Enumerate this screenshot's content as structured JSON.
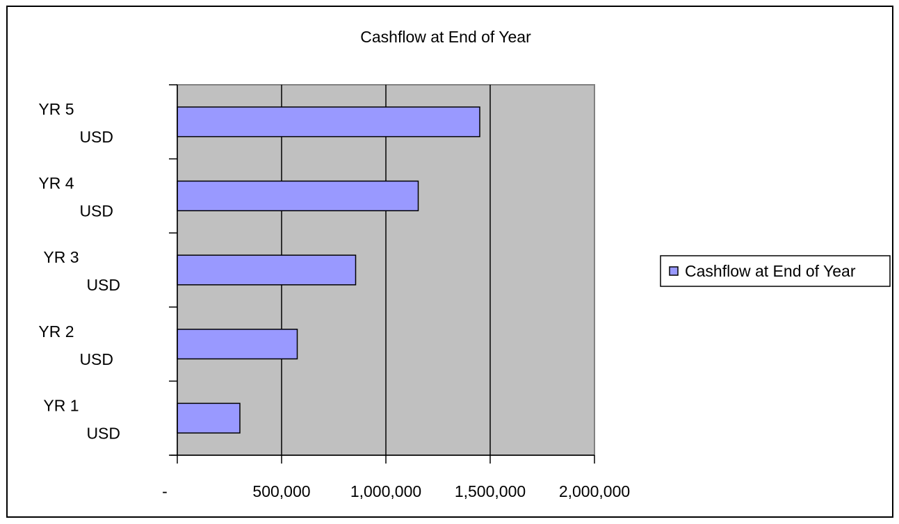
{
  "chart_data": {
    "type": "bar",
    "orientation": "horizontal",
    "title": "Cashflow at End of Year",
    "categories": [
      {
        "line1": "YR 1",
        "line2": "USD"
      },
      {
        "line1": "YR 2",
        "line2": "USD"
      },
      {
        "line1": "YR 3",
        "line2": "USD"
      },
      {
        "line1": "YR 4",
        "line2": "USD"
      },
      {
        "line1": "YR 5",
        "line2": "USD"
      }
    ],
    "series": [
      {
        "name": "Cashflow at End of Year",
        "values": [
          300000,
          575000,
          855000,
          1155000,
          1450000
        ]
      }
    ],
    "xlim": [
      0,
      2000000
    ],
    "x_ticks": [
      0,
      500000,
      1000000,
      1500000,
      2000000
    ],
    "x_tick_labels": [
      "-",
      "500,000",
      "1,000,000",
      "1,500,000",
      "2,000,000"
    ],
    "xlabel": "",
    "ylabel": "",
    "grid": "vertical",
    "legend_position": "right",
    "colors": {
      "bar_fill": "#9999ff",
      "plot_background": "#c0c0c0",
      "gridline": "#000000",
      "frame_border": "#000000"
    }
  }
}
